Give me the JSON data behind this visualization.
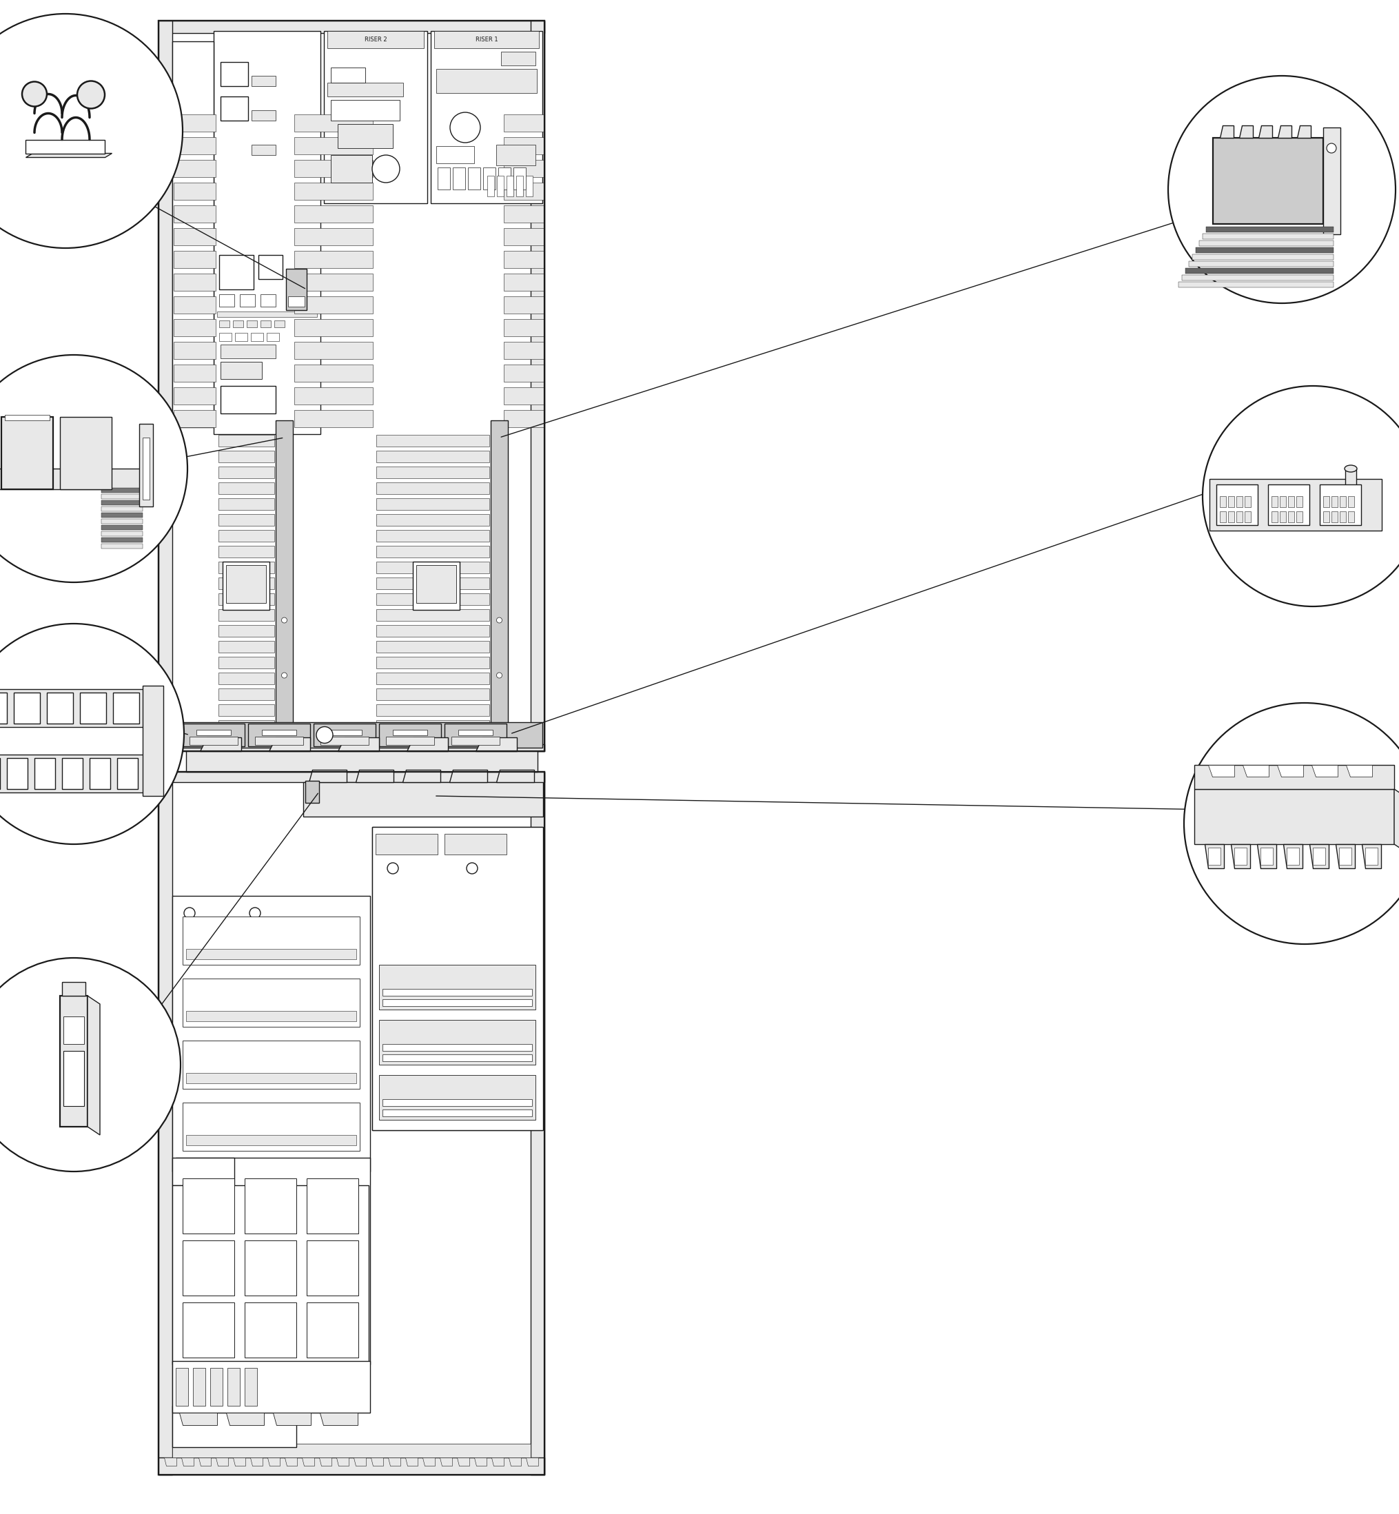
{
  "bg": "#ffffff",
  "lc": "#1a1a1a",
  "fl": "#e8e8e8",
  "fm": "#cccccc",
  "fw": 20.31,
  "fh": 21.97,
  "dpi": 100,
  "lw": 1.0,
  "lw2": 1.6
}
